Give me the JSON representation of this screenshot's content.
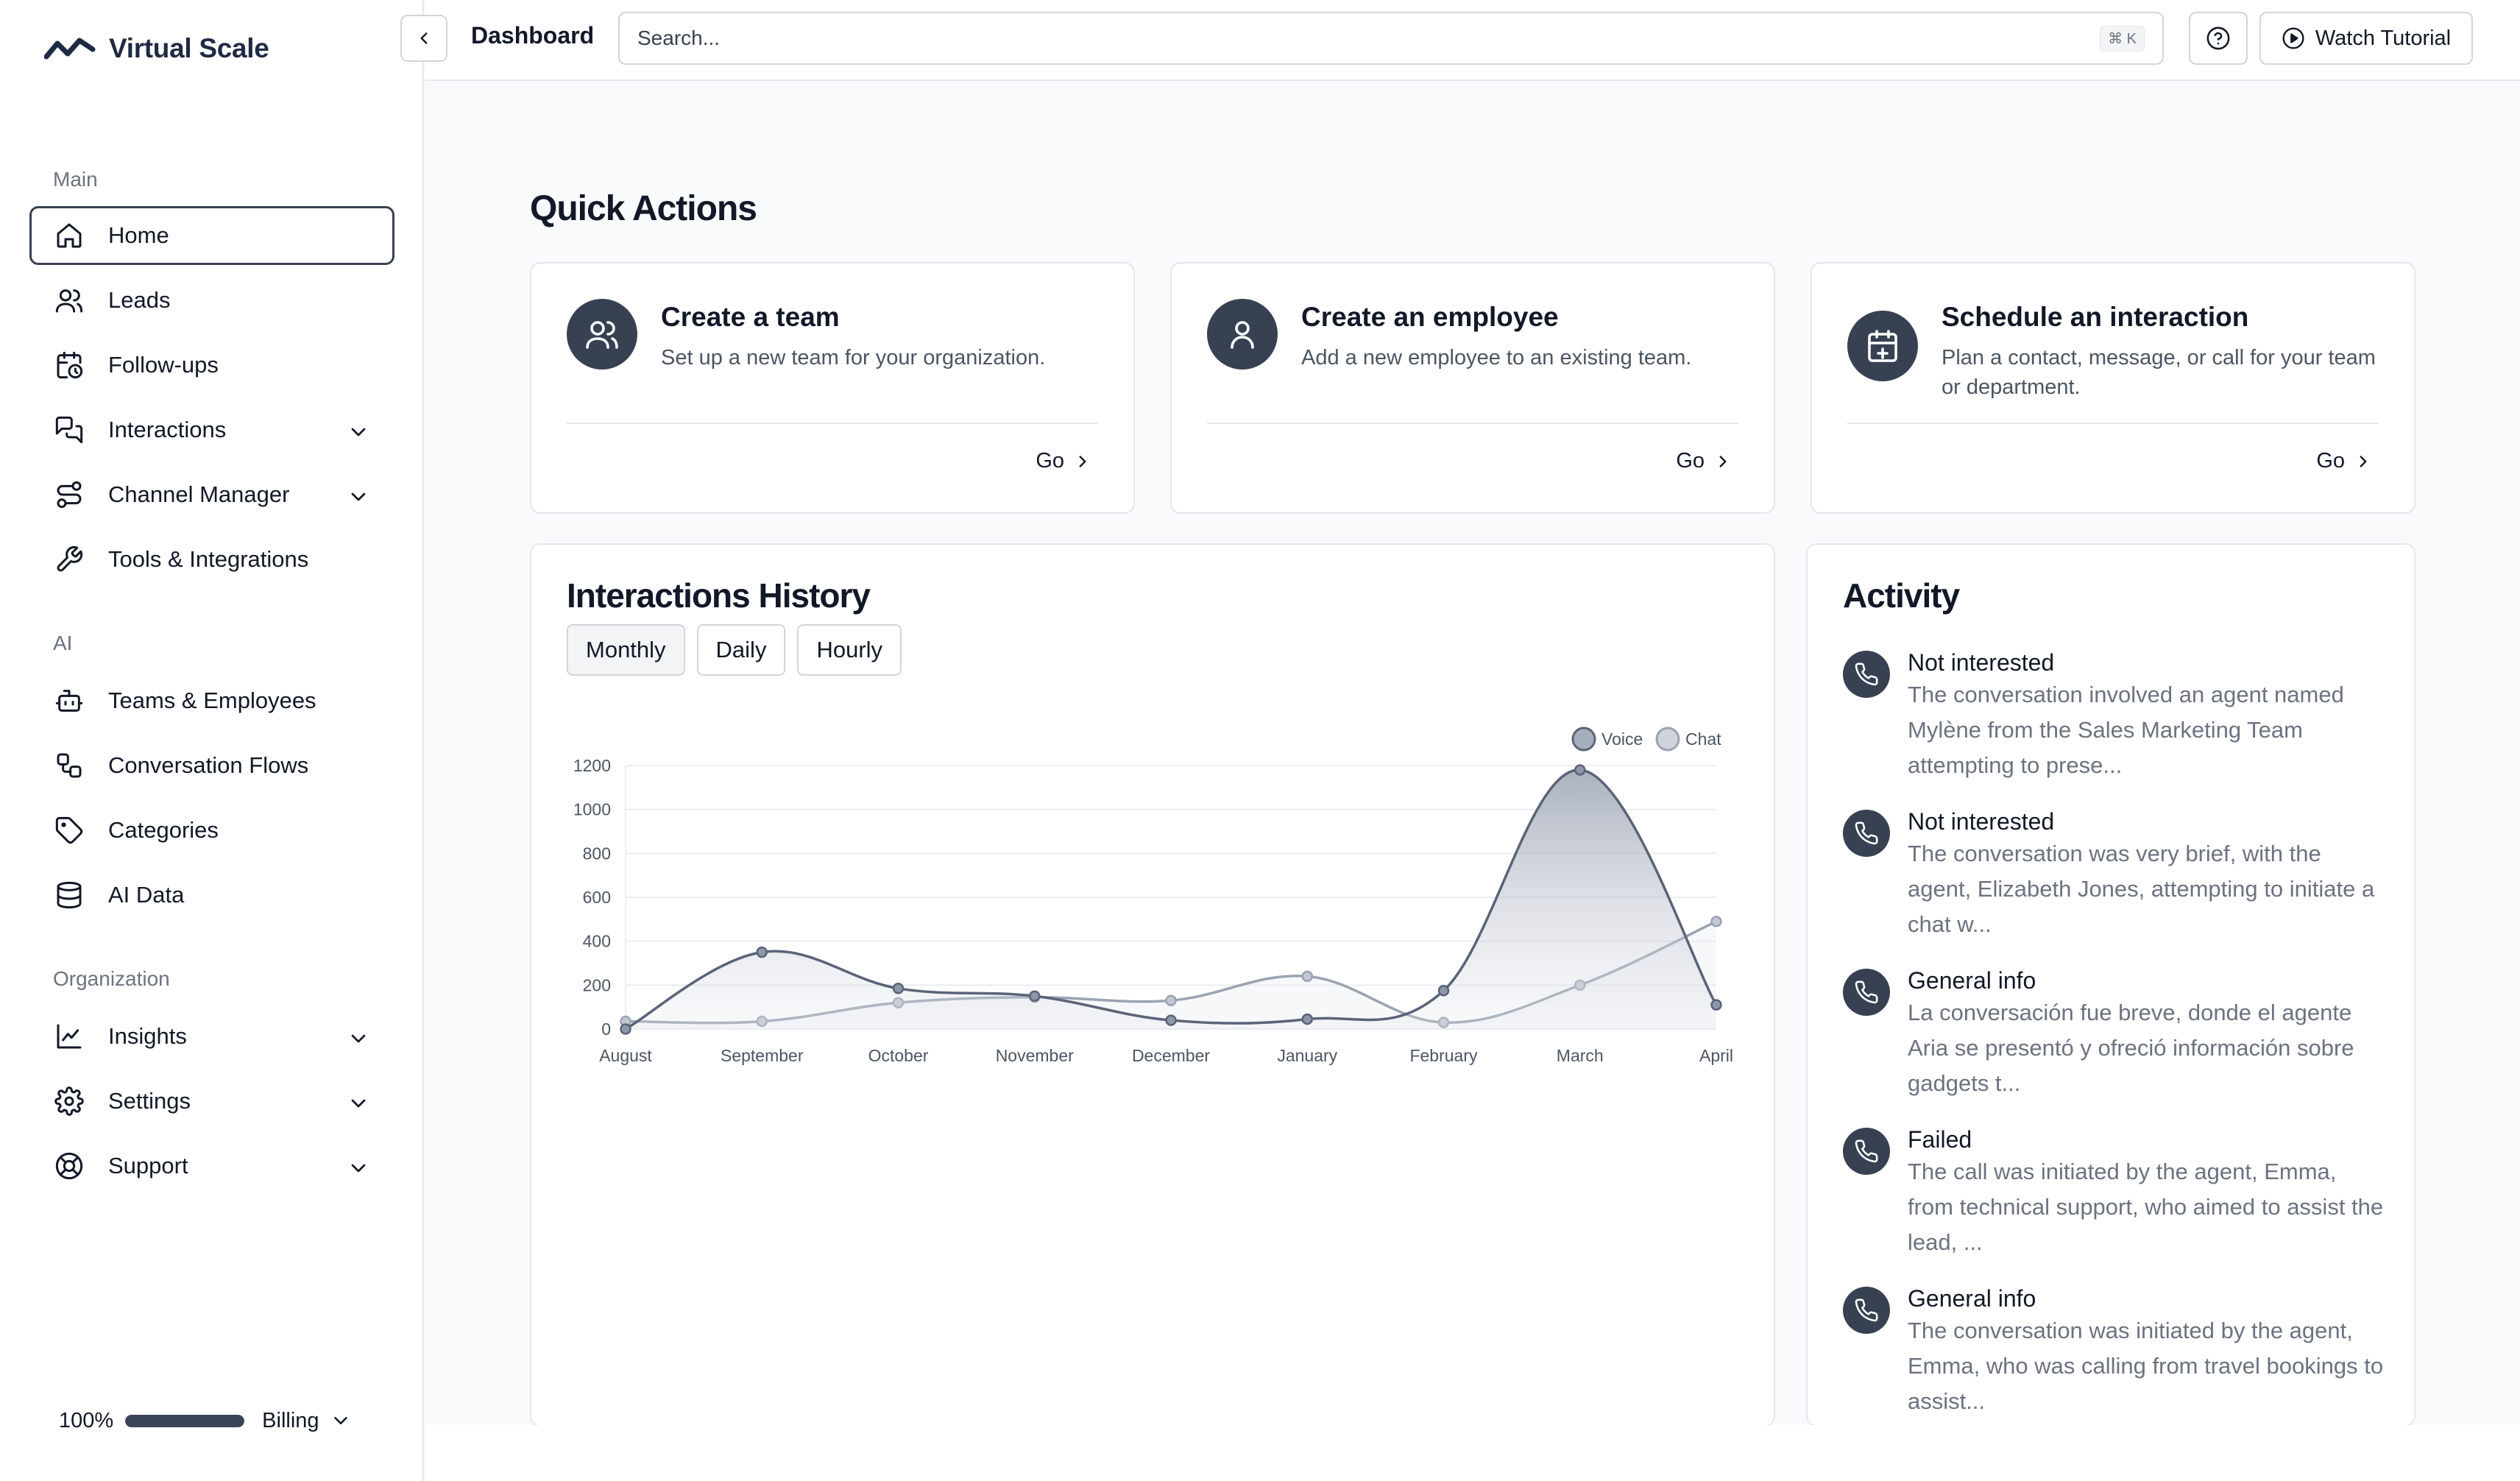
{
  "brand": {
    "name": "Virtual Scale",
    "logo_icon": "zigzag-logo-icon"
  },
  "sidebar": {
    "sections": [
      {
        "label": "Main",
        "items": [
          {
            "label": "Home",
            "icon": "home-icon",
            "active": true,
            "expandable": false
          },
          {
            "label": "Leads",
            "icon": "users-icon",
            "active": false,
            "expandable": false
          },
          {
            "label": "Follow-ups",
            "icon": "calendar-clock-icon",
            "active": false,
            "expandable": false
          },
          {
            "label": "Interactions",
            "icon": "messages-icon",
            "active": false,
            "expandable": true
          },
          {
            "label": "Channel Manager",
            "icon": "route-icon",
            "active": false,
            "expandable": true
          },
          {
            "label": "Tools & Integrations",
            "icon": "wrench-icon",
            "active": false,
            "expandable": false
          }
        ]
      },
      {
        "label": "AI",
        "items": [
          {
            "label": "Teams & Employees",
            "icon": "bot-icon",
            "active": false,
            "expandable": false
          },
          {
            "label": "Conversation Flows",
            "icon": "workflow-icon",
            "active": false,
            "expandable": false
          },
          {
            "label": "Categories",
            "icon": "tag-icon",
            "active": false,
            "expandable": false
          },
          {
            "label": "AI Data",
            "icon": "database-icon",
            "active": false,
            "expandable": false
          }
        ]
      },
      {
        "label": "Organization",
        "items": [
          {
            "label": "Insights",
            "icon": "line-chart-icon",
            "active": false,
            "expandable": true
          },
          {
            "label": "Settings",
            "icon": "gear-icon",
            "active": false,
            "expandable": true
          },
          {
            "label": "Support",
            "icon": "lifebuoy-icon",
            "active": false,
            "expandable": true
          }
        ]
      }
    ],
    "footer": {
      "usage_percent_label": "100%",
      "usage_fraction": 1.0,
      "billing_label": "Billing"
    }
  },
  "topbar": {
    "page_title": "Dashboard",
    "search_placeholder": "Search...",
    "search_shortcut": "⌘ K",
    "help_icon": "help-circle-icon",
    "tutorial_label": "Watch Tutorial",
    "tutorial_icon": "play-circle-icon"
  },
  "quick_actions": {
    "heading": "Quick Actions",
    "cards": [
      {
        "title": "Create a team",
        "description": "Set up a new team for your organization.",
        "go_label": "Go",
        "icon": "users-icon"
      },
      {
        "title": "Create an employee",
        "description": "Add a new employee to an existing team.",
        "go_label": "Go",
        "icon": "user-icon"
      },
      {
        "title": "Schedule an interaction",
        "description": "Plan a contact, message, or call for your team or department.",
        "go_label": "Go",
        "icon": "calendar-plus-icon"
      }
    ]
  },
  "history": {
    "title": "Interactions History",
    "tabs": [
      {
        "label": "Monthly",
        "active": true
      },
      {
        "label": "Daily",
        "active": false
      },
      {
        "label": "Hourly",
        "active": false
      }
    ]
  },
  "chart_data": {
    "type": "area",
    "categories": [
      "August",
      "September",
      "October",
      "November",
      "December",
      "January",
      "February",
      "March",
      "April"
    ],
    "series": [
      {
        "name": "Voice",
        "values": [
          0,
          350,
          185,
          150,
          40,
          45,
          175,
          1180,
          110
        ],
        "color": "#5a6478"
      },
      {
        "name": "Chat",
        "values": [
          35,
          35,
          120,
          145,
          130,
          240,
          30,
          200,
          490
        ],
        "color": "#9aa3b2"
      }
    ],
    "ylim": [
      0,
      1200
    ],
    "yticks": [
      0,
      200,
      400,
      600,
      800,
      1000,
      1200
    ],
    "grid": true,
    "legend_position": "top-right"
  },
  "activity": {
    "title": "Activity",
    "items": [
      {
        "title": "Not interested",
        "description": "The conversation involved an agent named Mylène from the Sales Marketing Team attempting to prese...",
        "icon": "phone-icon"
      },
      {
        "title": "Not interested",
        "description": "The conversation was very brief, with the agent, Elizabeth Jones, attempting to initiate a chat w...",
        "icon": "phone-icon"
      },
      {
        "title": "General info",
        "description": "La conversación fue breve, donde el agente Aria se presentó y ofreció información sobre gadgets t...",
        "icon": "phone-icon"
      },
      {
        "title": "Failed",
        "description": "The call was initiated by the agent, Emma, from technical support, who aimed to assist the lead, ...",
        "icon": "phone-icon"
      },
      {
        "title": "General info",
        "description": "The conversation was initiated by the agent, Emma, who was calling from travel bookings to assist...",
        "icon": "phone-icon"
      }
    ]
  }
}
